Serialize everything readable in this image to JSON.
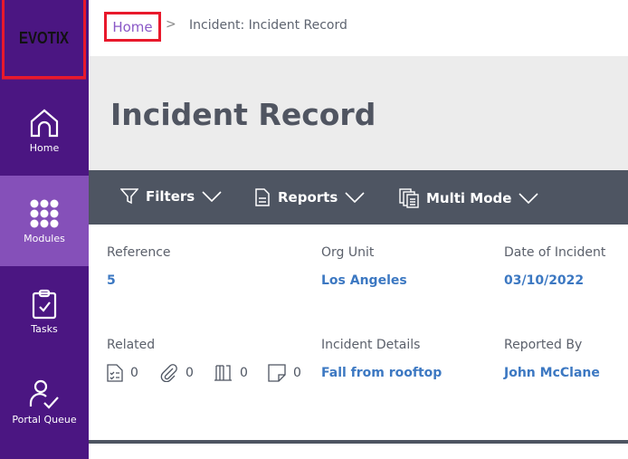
{
  "logo": "EVOTIX",
  "sidebar": {
    "items": [
      {
        "label": "Home",
        "icon": "home-icon"
      },
      {
        "label": "Modules",
        "icon": "grid-icon",
        "active": true
      },
      {
        "label": "Tasks",
        "icon": "clipboard-check-icon"
      },
      {
        "label": "Portal Queue",
        "icon": "user-check-icon"
      }
    ]
  },
  "breadcrumb": {
    "home": "Home",
    "separator": ">",
    "current": "Incident: Incident Record"
  },
  "page_title": "Incident Record",
  "toolbar": {
    "filters": "Filters",
    "reports": "Reports",
    "multi_mode": "Multi Mode"
  },
  "fields": {
    "reference": {
      "label": "Reference",
      "value": "5"
    },
    "org_unit": {
      "label": "Org Unit",
      "value": "Los Angeles"
    },
    "date": {
      "label": "Date of Incident",
      "value": "03/10/2022"
    },
    "related": {
      "label": "Related",
      "checklists": "0",
      "attachments": "0",
      "library": "0",
      "notes": "0"
    },
    "details": {
      "label": "Incident Details",
      "value": "Fall from rooftop"
    },
    "reported_by": {
      "label": "Reported By",
      "value": "John McClane"
    }
  },
  "colors": {
    "sidebar": "#4b1682",
    "active": "#8550b9",
    "toolbar": "#4e5562",
    "link": "#3c78c2",
    "highlight": "#e8192c"
  }
}
